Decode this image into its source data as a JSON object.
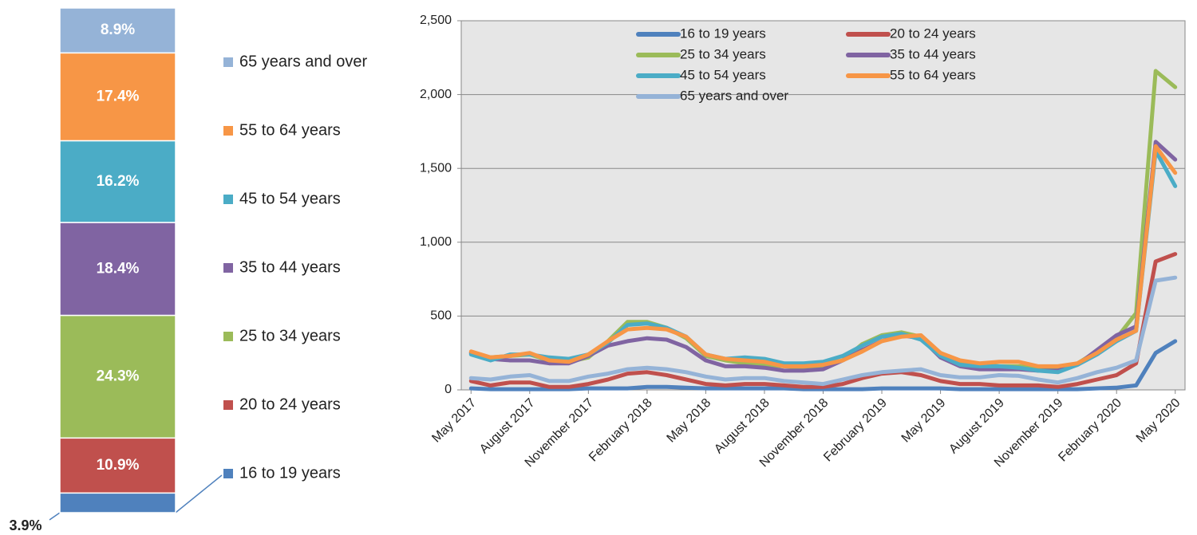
{
  "chart_data": [
    {
      "type": "bar",
      "stacked": true,
      "series": [
        {
          "name": "16 to 19 years",
          "color": "#4f81bd",
          "values": [
            3.9
          ],
          "value_labels": [
            "3.9%"
          ]
        },
        {
          "name": "20 to 24 years",
          "color": "#c0504d",
          "values": [
            10.9
          ],
          "value_labels": [
            "10.9%"
          ]
        },
        {
          "name": "25 to 34 years",
          "color": "#9bbb59",
          "values": [
            24.3
          ],
          "value_labels": [
            "24.3%"
          ]
        },
        {
          "name": "35 to 44 years",
          "color": "#8064a2",
          "values": [
            18.4
          ],
          "value_labels": [
            "18.4%"
          ]
        },
        {
          "name": "45 to 54 years",
          "color": "#4bacc6",
          "values": [
            16.2
          ],
          "value_labels": [
            "16.2%"
          ]
        },
        {
          "name": "55 to 64 years",
          "color": "#f79646",
          "values": [
            17.4
          ],
          "value_labels": [
            "17.4%"
          ]
        },
        {
          "name": "65 years and over",
          "color": "#95b3d7",
          "values": [
            8.9
          ],
          "value_labels": [
            "8.9%"
          ]
        }
      ]
    },
    {
      "type": "line",
      "categories": [
        "May 2017",
        null,
        null,
        "August 2017",
        null,
        null,
        "November 2017",
        null,
        null,
        "February 2018",
        null,
        null,
        "May 2018",
        null,
        null,
        "August 2018",
        null,
        null,
        "November 2018",
        null,
        null,
        "February 2019",
        null,
        null,
        "May 2019",
        null,
        null,
        "August 2019",
        null,
        null,
        "November 2019",
        null,
        null,
        "February 2020",
        null,
        null,
        "May 2020"
      ],
      "ylim": [
        0,
        2500
      ],
      "yticks": [
        0,
        500,
        {
          "value": 1000,
          "label": "1,000"
        },
        {
          "value": 1500,
          "label": "1,500"
        },
        {
          "value": 2000,
          "label": "2,000"
        },
        {
          "value": 2500,
          "label": "2,500"
        }
      ],
      "grid": true,
      "legend": "top",
      "series": [
        {
          "name": "16 to 19 years",
          "color": "#4f81bd",
          "values": [
            10,
            5,
            5,
            5,
            5,
            5,
            10,
            10,
            10,
            20,
            20,
            15,
            10,
            10,
            10,
            10,
            10,
            5,
            5,
            5,
            5,
            10,
            10,
            10,
            10,
            5,
            5,
            5,
            5,
            5,
            5,
            5,
            10,
            15,
            30,
            250,
            330
          ]
        },
        {
          "name": "20 to 24 years",
          "color": "#c0504d",
          "values": [
            60,
            30,
            50,
            50,
            20,
            20,
            40,
            70,
            110,
            120,
            100,
            70,
            40,
            30,
            40,
            40,
            30,
            20,
            20,
            40,
            80,
            110,
            120,
            100,
            60,
            40,
            40,
            30,
            30,
            30,
            20,
            40,
            70,
            100,
            180,
            870,
            920
          ]
        },
        {
          "name": "25 to 34 years",
          "color": "#9bbb59",
          "values": [
            250,
            220,
            230,
            240,
            200,
            190,
            220,
            330,
            460,
            460,
            420,
            350,
            230,
            200,
            180,
            170,
            160,
            150,
            160,
            200,
            310,
            370,
            390,
            360,
            250,
            190,
            170,
            160,
            160,
            150,
            150,
            180,
            260,
            350,
            520,
            2160,
            2050
          ]
        },
        {
          "name": "35 to 44 years",
          "color": "#8064a2",
          "values": [
            250,
            210,
            200,
            200,
            180,
            180,
            230,
            300,
            330,
            350,
            340,
            290,
            200,
            160,
            160,
            150,
            130,
            130,
            140,
            200,
            270,
            330,
            370,
            350,
            220,
            160,
            140,
            140,
            140,
            130,
            130,
            170,
            270,
            370,
            430,
            1680,
            1560
          ]
        },
        {
          "name": "45 to 54 years",
          "color": "#4bacc6",
          "values": [
            240,
            200,
            240,
            240,
            220,
            210,
            240,
            320,
            440,
            450,
            420,
            360,
            240,
            210,
            220,
            210,
            180,
            180,
            190,
            230,
            300,
            360,
            380,
            340,
            230,
            170,
            160,
            160,
            150,
            130,
            120,
            170,
            240,
            330,
            400,
            1620,
            1380
          ]
        },
        {
          "name": "55 to 64 years",
          "color": "#f79646",
          "values": [
            260,
            220,
            230,
            250,
            200,
            190,
            240,
            330,
            410,
            420,
            410,
            360,
            240,
            210,
            200,
            190,
            160,
            160,
            170,
            200,
            260,
            330,
            360,
            370,
            250,
            200,
            180,
            190,
            190,
            160,
            160,
            180,
            250,
            340,
            400,
            1650,
            1470
          ]
        },
        {
          "name": "65 years and over",
          "color": "#95b3d7",
          "values": [
            80,
            70,
            90,
            100,
            60,
            60,
            90,
            110,
            140,
            150,
            140,
            120,
            90,
            70,
            80,
            80,
            60,
            50,
            40,
            70,
            100,
            120,
            130,
            140,
            100,
            85,
            85,
            100,
            95,
            70,
            50,
            80,
            120,
            150,
            200,
            740,
            760
          ]
        }
      ]
    }
  ]
}
